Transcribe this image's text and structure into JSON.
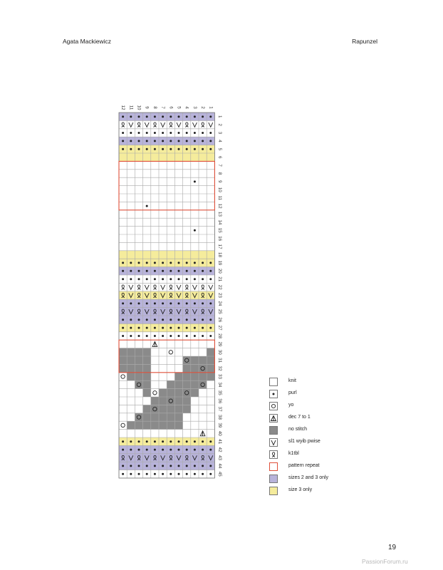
{
  "header": {
    "author": "Agata Mackiewicz",
    "title": "Rapunzel"
  },
  "footer": {
    "page_number": "19",
    "watermark": "PassionForum.ru"
  },
  "colors": {
    "purple": "#b8b3da",
    "yellow": "#f5ec9c",
    "gray": "#8a8a8a",
    "grid": "#a9a9a9",
    "repeat_outline": "#e0503a",
    "symbol": "#222222"
  },
  "chart_data": {
    "type": "table",
    "columns": [
      "12",
      "11",
      "10",
      "9",
      "8",
      "7",
      "6",
      "5",
      "4",
      "3",
      "2",
      "1"
    ],
    "row_labels": [
      "1",
      "2",
      "3",
      "4",
      "5",
      "6",
      "7",
      "8",
      "9",
      "10",
      "11",
      "12",
      "13",
      "14",
      "15",
      "16",
      "17",
      "18",
      "19",
      "20",
      "21",
      "22",
      "23",
      "24",
      "25",
      "26",
      "27",
      "28",
      "29",
      "30",
      "31",
      "32",
      "33",
      "34",
      "35",
      "36",
      "37",
      "38",
      "39",
      "40",
      "41",
      "42",
      "43",
      "44",
      "45"
    ],
    "grid_legend": "backgrounds: W=knit, P=sizes 2 and 3 only, Y=size 3 only, G=no stitch; symbols: .=none, p=purl, o=yo, A=dec 7 to 1, v=sl1 wyib pwise, k=k1tbl",
    "backgrounds": [
      "PPPPPPPPPPPP",
      "WWWWWWWWWWWW",
      "WWWWWWWWWWWW",
      "PPPPPPPPPPPP",
      "YYYYYYYYYYYY",
      "YYYYYYYYYYYY",
      "WWWWWWWWWWWW",
      "WWWWWWWWWWWW",
      "WWWWWWWWWWWW",
      "WWWWWWWWWWWW",
      "WWWWWWWWWWWW",
      "WWWWWWWWWWWW",
      "WWWWWWWWWWWW",
      "WWWWWWWWWWWW",
      "WWWWWWWWWWWW",
      "WWWWWWWWWWWW",
      "WWWWWWWWWWWW",
      "YYYYYYYYYYYY",
      "YYYYYYYYYYYY",
      "PPPPPPPPPPPP",
      "WWWWWWWWWWWW",
      "WWWWWWWWWWWW",
      "YYYYYYYYYYYY",
      "PPPPPPPPPPPP",
      "PPPPPPPPPPPP",
      "PPPPPPPPPPPP",
      "YYYYYYYYYYYY",
      "WWWWWWWWWWWW",
      "WWWWWWWWWWWW",
      "GGGGWWWWWWWG",
      "GGGGWWWWGGGG",
      "GGGGWWWWGGGG",
      "WGGGWWWGGGGG",
      "WWGGWWGGGGGW",
      "WWWGWGGGGGWW",
      "WWWWGGGGGWWW",
      "WWWGGGGGGWWW",
      "WWGGGGGGWWWW",
      "WGGGGGGGWWWW",
      "WWWWWWWWWWWW",
      "YYYYYYYYYYYY",
      "PPPPPPPPPPPP",
      "PPPPPPPPPPPP",
      "PPPPPPPPPPPP",
      "WWWWWWWWWWWW"
    ],
    "symbols": [
      "pppppppppppp",
      "kvkvkvkvkvkv",
      "pppppppppppp",
      "pppppppppppp",
      "pppppppppppp",
      "............",
      "............",
      "............",
      ".........p..",
      "............",
      "............",
      "...p........",
      "............",
      "............",
      ".........p..",
      "............",
      "............",
      "............",
      "pppppppppppp",
      "pppppppppppp",
      "pppppppppppp",
      "kvkvkvkvkvkv",
      "kvkvkvkvkvkv",
      "pppppppppppp",
      "kvkvkvkvkvkv",
      "pppppppppppp",
      "pppppppppppp",
      "pppppppppppp",
      "....A.......",
      "......o.....",
      "........o...",
      "..........o.",
      "o...........",
      "..o.......o.",
      "....o...o...",
      "......o.....",
      "....o.......",
      "..o.........",
      "o...........",
      "..........A.",
      "pppppppppppp",
      "pppppppppppp",
      "kvkvkvkvkvkv",
      "pppppppppppp",
      "pppppppppppp"
    ],
    "pattern_repeats": [
      {
        "from_row": 7,
        "to_row": 12
      },
      {
        "from_row": 29,
        "to_row": 32
      }
    ],
    "legend": [
      {
        "key": "knit",
        "label": "knit"
      },
      {
        "key": "purl",
        "label": "purl"
      },
      {
        "key": "yo",
        "label": "yo"
      },
      {
        "key": "dec",
        "label": "dec 7 to 1"
      },
      {
        "key": "nostitch",
        "label": "no stitch"
      },
      {
        "key": "slip",
        "label": "sl1 wyib pwise"
      },
      {
        "key": "k1tbl",
        "label": "k1tbl"
      },
      {
        "key": "repeat",
        "label": "pattern repeat"
      },
      {
        "key": "sizes23",
        "label": "sizes 2 and 3 only"
      },
      {
        "key": "size3",
        "label": "size 3 only"
      }
    ]
  }
}
